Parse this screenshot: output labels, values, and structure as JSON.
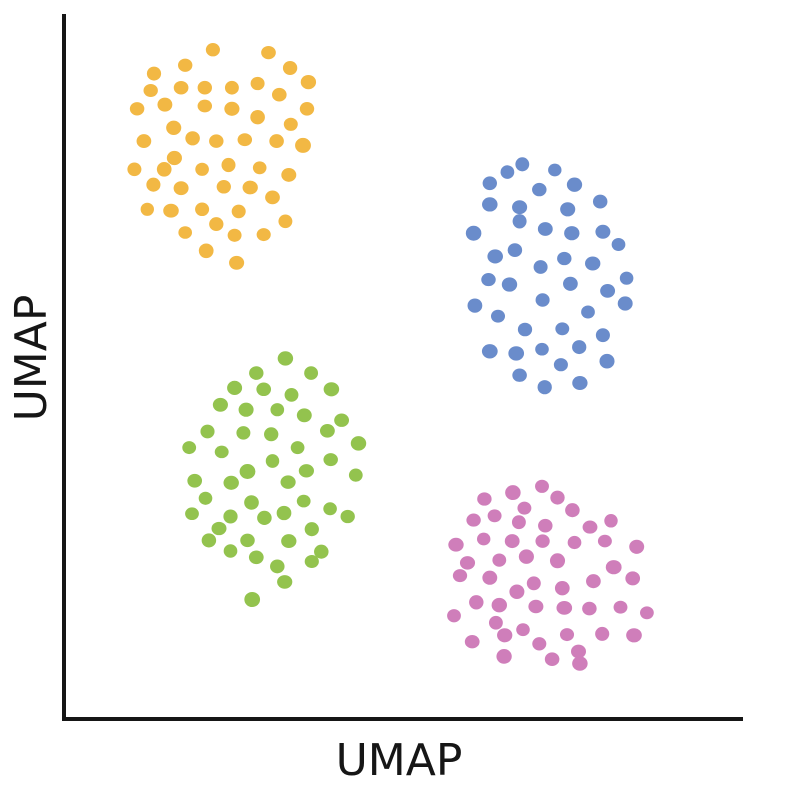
{
  "chart_data": {
    "type": "scatter",
    "title": "",
    "xlabel": "UMAP",
    "ylabel": "UMAP",
    "xlim": [
      0,
      100
    ],
    "ylim": [
      0,
      100
    ],
    "grid": false,
    "legend": "none",
    "series": [
      {
        "color": "#f2b844",
        "points": [
          [
            30.2,
            94.8
          ],
          [
            22.0,
            95.2
          ],
          [
            17.9,
            93.0
          ],
          [
            13.3,
            91.8
          ],
          [
            33.4,
            92.6
          ],
          [
            12.8,
            89.4
          ],
          [
            17.3,
            89.8
          ],
          [
            20.8,
            89.8
          ],
          [
            24.8,
            89.8
          ],
          [
            28.6,
            90.4
          ],
          [
            31.8,
            88.8
          ],
          [
            36.1,
            90.6
          ],
          [
            10.8,
            86.8
          ],
          [
            14.9,
            87.4
          ],
          [
            20.8,
            87.2
          ],
          [
            24.8,
            86.8
          ],
          [
            28.6,
            85.6
          ],
          [
            35.9,
            86.8
          ],
          [
            33.5,
            84.6
          ],
          [
            11.8,
            82.2
          ],
          [
            16.2,
            84.1
          ],
          [
            19.0,
            82.6
          ],
          [
            22.5,
            82.2
          ],
          [
            26.7,
            82.4
          ],
          [
            31.4,
            82.2
          ],
          [
            35.3,
            81.6
          ],
          [
            16.3,
            79.8
          ],
          [
            28.9,
            78.4
          ],
          [
            10.4,
            78.2
          ],
          [
            14.8,
            78.2
          ],
          [
            20.4,
            78.2
          ],
          [
            24.3,
            78.8
          ],
          [
            33.2,
            77.4
          ],
          [
            13.2,
            76.0
          ],
          [
            17.3,
            75.5
          ],
          [
            23.6,
            75.7
          ],
          [
            27.5,
            75.6
          ],
          [
            30.8,
            74.2
          ],
          [
            12.3,
            72.5
          ],
          [
            15.8,
            72.3
          ],
          [
            20.4,
            72.5
          ],
          [
            25.8,
            72.2
          ],
          [
            32.7,
            70.8
          ],
          [
            17.9,
            69.2
          ],
          [
            22.5,
            70.4
          ],
          [
            25.2,
            68.8
          ],
          [
            29.5,
            68.9
          ],
          [
            21.0,
            66.6
          ],
          [
            25.5,
            64.9
          ]
        ]
      },
      {
        "color": "#6a8ccb",
        "points": [
          [
            67.7,
            78.9
          ],
          [
            72.5,
            78.1
          ],
          [
            65.5,
            77.8
          ],
          [
            62.9,
            76.2
          ],
          [
            75.4,
            76.0
          ],
          [
            70.2,
            75.3
          ],
          [
            67.3,
            72.8
          ],
          [
            74.4,
            72.5
          ],
          [
            79.2,
            73.6
          ],
          [
            62.9,
            73.2
          ],
          [
            60.5,
            69.1
          ],
          [
            67.3,
            70.8
          ],
          [
            71.1,
            69.7
          ],
          [
            75.0,
            69.1
          ],
          [
            79.6,
            69.3
          ],
          [
            81.9,
            67.5
          ],
          [
            63.7,
            65.8
          ],
          [
            66.6,
            66.7
          ],
          [
            73.9,
            65.5
          ],
          [
            78.1,
            64.8
          ],
          [
            70.4,
            64.3
          ],
          [
            62.7,
            62.5
          ],
          [
            65.8,
            61.8
          ],
          [
            74.8,
            61.9
          ],
          [
            80.3,
            60.9
          ],
          [
            83.1,
            62.7
          ],
          [
            70.7,
            59.6
          ],
          [
            77.4,
            57.9
          ],
          [
            82.9,
            59.1
          ],
          [
            60.7,
            58.8
          ],
          [
            64.1,
            57.3
          ],
          [
            68.1,
            55.4
          ],
          [
            73.6,
            55.5
          ],
          [
            79.6,
            54.6
          ],
          [
            76.1,
            52.9
          ],
          [
            62.9,
            52.3
          ],
          [
            66.8,
            52.0
          ],
          [
            70.6,
            52.6
          ],
          [
            80.2,
            50.9
          ],
          [
            73.4,
            50.4
          ],
          [
            67.3,
            48.9
          ],
          [
            76.2,
            47.8
          ],
          [
            71.0,
            47.2
          ]
        ]
      },
      {
        "color": "#93c34e",
        "points": [
          [
            32.7,
            51.3
          ],
          [
            28.4,
            49.2
          ],
          [
            36.5,
            49.2
          ],
          [
            25.2,
            47.1
          ],
          [
            29.5,
            46.9
          ],
          [
            33.6,
            46.1
          ],
          [
            39.5,
            46.9
          ],
          [
            23.1,
            44.7
          ],
          [
            26.9,
            44.0
          ],
          [
            31.5,
            44.0
          ],
          [
            35.5,
            43.2
          ],
          [
            41.0,
            42.5
          ],
          [
            21.2,
            40.9
          ],
          [
            26.5,
            40.7
          ],
          [
            30.6,
            40.5
          ],
          [
            38.9,
            41.0
          ],
          [
            18.5,
            38.6
          ],
          [
            23.3,
            38.0
          ],
          [
            34.5,
            38.6
          ],
          [
            43.5,
            39.2
          ],
          [
            30.8,
            36.7
          ],
          [
            27.1,
            35.2
          ],
          [
            35.8,
            35.3
          ],
          [
            39.4,
            36.9
          ],
          [
            19.3,
            33.9
          ],
          [
            24.7,
            33.6
          ],
          [
            33.1,
            33.7
          ],
          [
            43.1,
            34.7
          ],
          [
            20.9,
            31.4
          ],
          [
            27.7,
            30.8
          ],
          [
            35.4,
            31.0
          ],
          [
            39.3,
            29.9
          ],
          [
            18.9,
            29.2
          ],
          [
            24.6,
            28.8
          ],
          [
            29.6,
            28.6
          ],
          [
            32.5,
            29.3
          ],
          [
            36.6,
            27.0
          ],
          [
            41.9,
            28.8
          ],
          [
            22.9,
            27.1
          ],
          [
            27.1,
            25.4
          ],
          [
            33.2,
            25.3
          ],
          [
            21.4,
            25.4
          ],
          [
            38.0,
            23.8
          ],
          [
            24.6,
            23.9
          ],
          [
            28.4,
            23.0
          ],
          [
            31.5,
            21.7
          ],
          [
            36.6,
            22.4
          ],
          [
            32.6,
            19.5
          ],
          [
            27.8,
            17.0
          ]
        ]
      },
      {
        "color": "#cf7eba",
        "points": [
          [
            70.6,
            33.1
          ],
          [
            66.3,
            32.2
          ],
          [
            72.9,
            31.5
          ],
          [
            62.1,
            31.3
          ],
          [
            75.1,
            29.7
          ],
          [
            68.0,
            30.0
          ],
          [
            63.6,
            28.9
          ],
          [
            60.5,
            28.3
          ],
          [
            67.2,
            28.0
          ],
          [
            71.1,
            27.5
          ],
          [
            77.7,
            27.3
          ],
          [
            80.8,
            28.2
          ],
          [
            57.9,
            24.8
          ],
          [
            62.0,
            25.6
          ],
          [
            66.2,
            25.3
          ],
          [
            70.7,
            25.3
          ],
          [
            75.4,
            25.1
          ],
          [
            79.9,
            25.3
          ],
          [
            84.6,
            24.5
          ],
          [
            72.9,
            22.5
          ],
          [
            59.6,
            22.2
          ],
          [
            64.3,
            22.6
          ],
          [
            68.3,
            23.1
          ],
          [
            81.2,
            21.6
          ],
          [
            58.5,
            20.4
          ],
          [
            62.9,
            20.1
          ],
          [
            69.4,
            19.3
          ],
          [
            73.6,
            18.6
          ],
          [
            78.2,
            19.6
          ],
          [
            84.0,
            20.0
          ],
          [
            66.9,
            18.1
          ],
          [
            60.9,
            16.6
          ],
          [
            64.3,
            16.2
          ],
          [
            69.7,
            16.0
          ],
          [
            73.9,
            15.8
          ],
          [
            77.6,
            15.7
          ],
          [
            82.2,
            15.9
          ],
          [
            86.1,
            15.1
          ],
          [
            57.6,
            14.7
          ],
          [
            63.8,
            13.7
          ],
          [
            67.8,
            12.7
          ],
          [
            74.3,
            12.0
          ],
          [
            79.5,
            12.1
          ],
          [
            84.2,
            11.9
          ],
          [
            60.3,
            11.0
          ],
          [
            65.1,
            11.9
          ],
          [
            70.2,
            10.7
          ],
          [
            76.0,
            9.6
          ],
          [
            65.0,
            8.9
          ],
          [
            72.1,
            8.5
          ],
          [
            76.2,
            7.9
          ]
        ]
      }
    ]
  }
}
